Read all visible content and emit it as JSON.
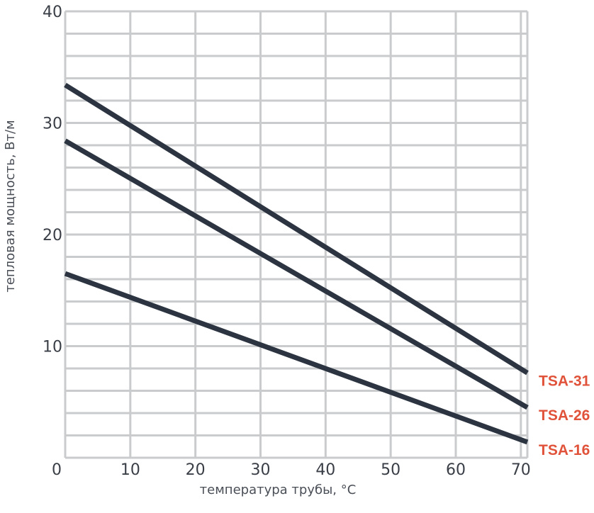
{
  "chart_data": {
    "type": "line",
    "xlabel": "температура трубы, °C",
    "ylabel": "тепловая мощность, Вт/м",
    "xlim": [
      0,
      71
    ],
    "ylim": [
      0,
      40
    ],
    "x_ticks": [
      0,
      10,
      20,
      30,
      40,
      50,
      60,
      70
    ],
    "y_ticks": [
      10,
      20,
      30,
      40
    ],
    "x_tick_labels": [
      "0",
      "10",
      "20",
      "30",
      "40",
      "50",
      "60",
      "70"
    ],
    "y_tick_labels": [
      "10",
      "20",
      "30",
      "40"
    ],
    "grid": true,
    "series": [
      {
        "name": "TSA-31",
        "x": [
          0,
          71
        ],
        "y": [
          33.4,
          7.6
        ]
      },
      {
        "name": "TSA-26",
        "x": [
          0,
          71
        ],
        "y": [
          28.4,
          4.5
        ]
      },
      {
        "name": "TSA-16",
        "x": [
          0,
          71
        ],
        "y": [
          16.5,
          1.4
        ]
      }
    ],
    "colors": {
      "line": "#2b3440",
      "grid": "#c9cbcd",
      "label": "#e0533a",
      "axis_text": "#3a3f47"
    }
  }
}
